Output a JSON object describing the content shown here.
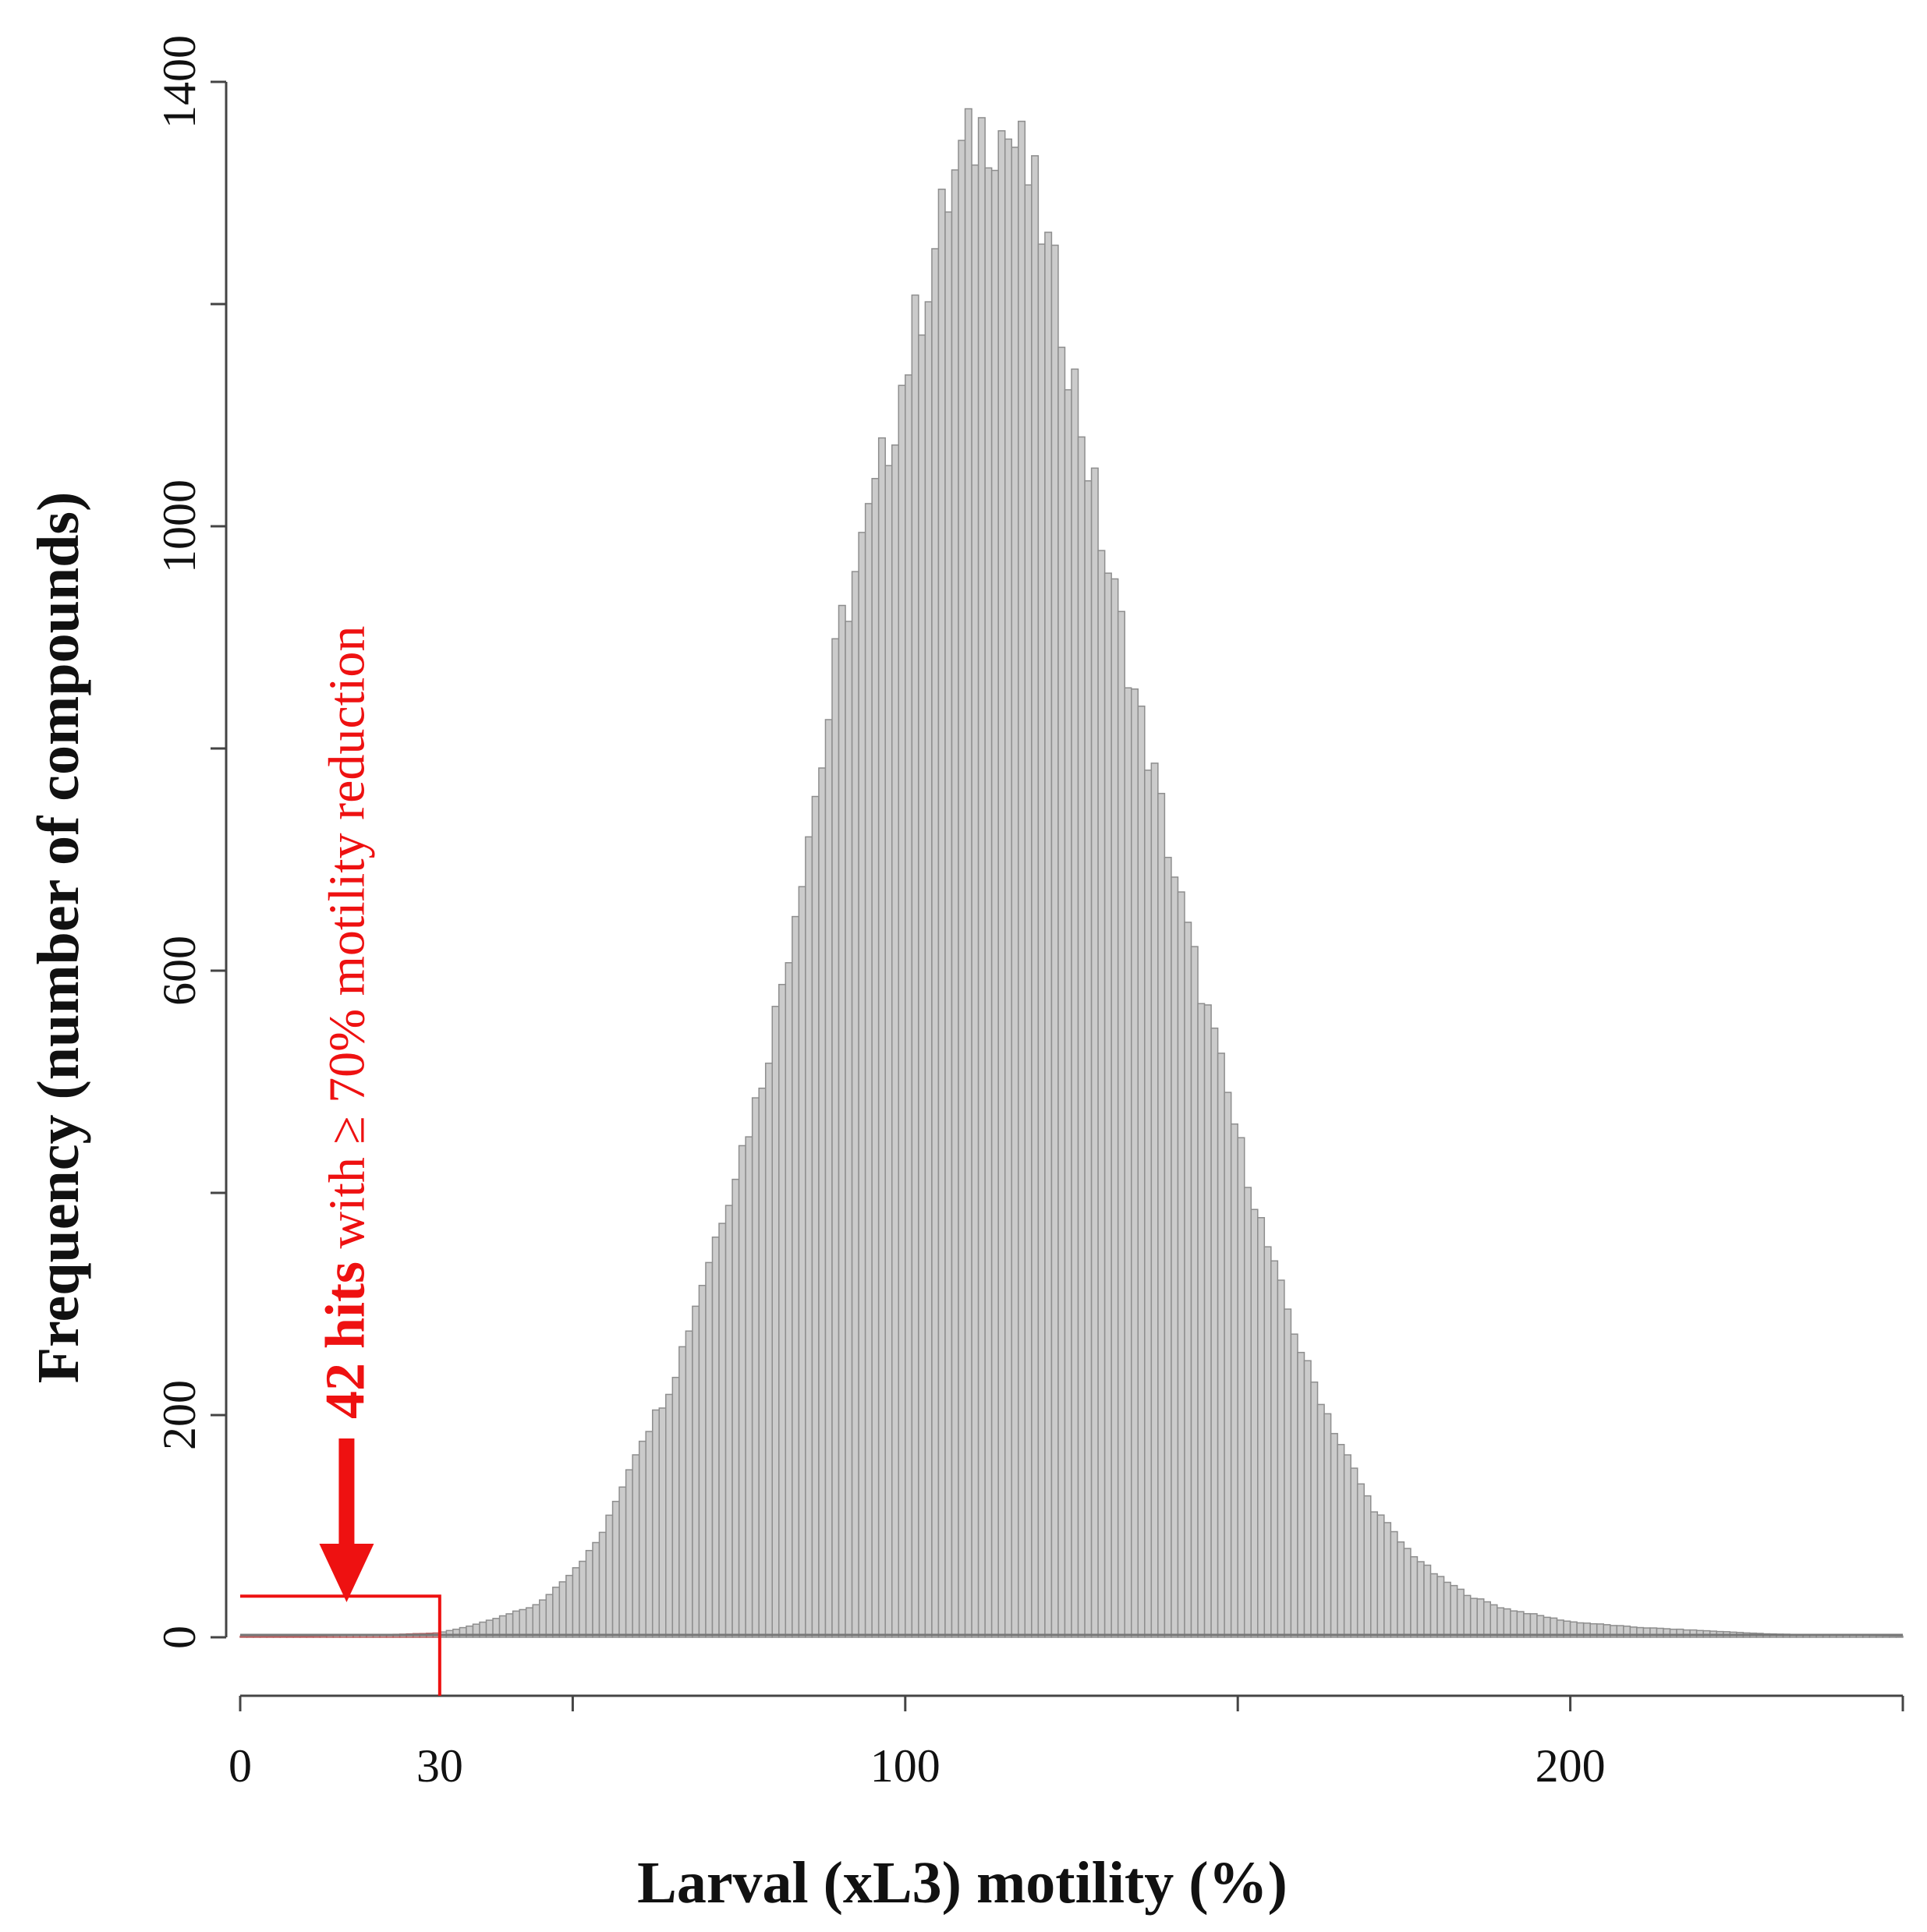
{
  "chart_data": {
    "type": "bar",
    "subtype": "histogram",
    "title": "",
    "xlabel": "Larval (xL3) motility (%)",
    "ylabel": "Frequency (number of compounds)",
    "xlim": [
      0,
      250
    ],
    "ylim": [
      0,
      1400
    ],
    "x_ticks": [
      0,
      50,
      100,
      150,
      200,
      250
    ],
    "x_tick_labels": [
      {
        "value": 0,
        "label": "0"
      },
      {
        "value": 30,
        "label": "30"
      },
      {
        "value": 100,
        "label": "100"
      },
      {
        "value": 200,
        "label": "200"
      }
    ],
    "y_ticks": [
      0,
      200,
      400,
      600,
      800,
      1000,
      1200,
      1400
    ],
    "y_tick_labels": [
      {
        "value": 0,
        "label": "0"
      },
      {
        "value": 200,
        "label": "200"
      },
      {
        "value": 600,
        "label": "600"
      },
      {
        "value": 1000,
        "label": "1000"
      },
      {
        "value": 1400,
        "label": "1400"
      }
    ],
    "grid": false,
    "bin_width": 1,
    "bin_start": 0,
    "bar_color": "#cbcbcb",
    "highlight_color": "#ee1111",
    "threshold": 30,
    "anchors": [
      [
        0,
        1
      ],
      [
        10,
        1
      ],
      [
        20,
        2
      ],
      [
        25,
        3
      ],
      [
        30,
        4
      ],
      [
        33,
        8
      ],
      [
        37,
        14
      ],
      [
        40,
        20
      ],
      [
        45,
        30
      ],
      [
        50,
        60
      ],
      [
        53,
        80
      ],
      [
        55,
        100
      ],
      [
        60,
        175
      ],
      [
        62,
        195
      ],
      [
        65,
        230
      ],
      [
        70,
        330
      ],
      [
        75,
        430
      ],
      [
        78,
        490
      ],
      [
        80,
        545
      ],
      [
        82,
        605
      ],
      [
        85,
        710
      ],
      [
        88,
        805
      ],
      [
        90,
        900
      ],
      [
        95,
        1015
      ],
      [
        100,
        1140
      ],
      [
        103,
        1215
      ],
      [
        106,
        1285
      ],
      [
        108,
        1325
      ],
      [
        110,
        1345
      ],
      [
        112,
        1360
      ],
      [
        114,
        1358
      ],
      [
        116,
        1350
      ],
      [
        118,
        1325
      ],
      [
        120,
        1285
      ],
      [
        123,
        1205
      ],
      [
        126,
        1110
      ],
      [
        130,
        975
      ],
      [
        133,
        895
      ],
      [
        135,
        835
      ],
      [
        138,
        760
      ],
      [
        140,
        700
      ],
      [
        143,
        620
      ],
      [
        146,
        550
      ],
      [
        150,
        450
      ],
      [
        155,
        340
      ],
      [
        160,
        250
      ],
      [
        165,
        180
      ],
      [
        170,
        120
      ],
      [
        175,
        82
      ],
      [
        180,
        55
      ],
      [
        185,
        37
      ],
      [
        190,
        26
      ],
      [
        195,
        20
      ],
      [
        200,
        14
      ],
      [
        210,
        9
      ],
      [
        220,
        6
      ],
      [
        230,
        3
      ],
      [
        240,
        2
      ],
      [
        250,
        1
      ]
    ],
    "annotation": {
      "bold_text": "42 hits",
      "text": " with ≥ 70% motility reduction",
      "color": "#ee1111",
      "highlight_range": [
        0,
        30
      ]
    }
  }
}
